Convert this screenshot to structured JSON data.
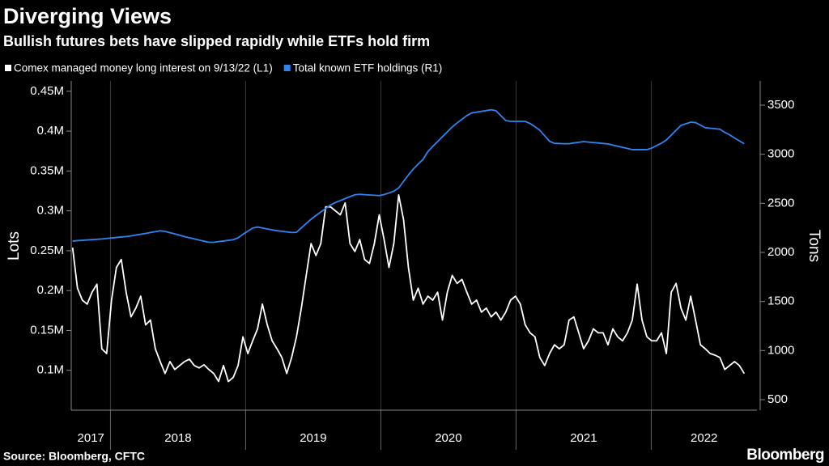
{
  "chart_data": {
    "type": "line",
    "title": "Diverging Views",
    "subtitle": "Bullish futures bets have slipped rapidly while ETFs hold firm",
    "source": "Source: Bloomberg, CFTC",
    "brand": "Bloomberg",
    "ylabel": "Lots",
    "y2label": "Tons",
    "x": [
      2017.72,
      2017.756,
      2017.792,
      2017.828,
      2017.864,
      2017.9,
      2017.936,
      2017.972,
      2018.008,
      2018.044,
      2018.08,
      2018.116,
      2018.152,
      2018.188,
      2018.224,
      2018.26,
      2018.296,
      2018.332,
      2018.368,
      2018.404,
      2018.44,
      2018.476,
      2018.512,
      2018.548,
      2018.584,
      2018.62,
      2018.656,
      2018.692,
      2018.728,
      2018.764,
      2018.8,
      2018.836,
      2018.872,
      2018.908,
      2018.944,
      2018.98,
      2019.016,
      2019.052,
      2019.088,
      2019.124,
      2019.16,
      2019.196,
      2019.232,
      2019.268,
      2019.304,
      2019.34,
      2019.376,
      2019.412,
      2019.448,
      2019.484,
      2019.52,
      2019.556,
      2019.592,
      2019.628,
      2019.664,
      2019.7,
      2019.736,
      2019.772,
      2019.808,
      2019.844,
      2019.88,
      2019.916,
      2019.952,
      2019.988,
      2020.024,
      2020.06,
      2020.096,
      2020.132,
      2020.168,
      2020.204,
      2020.24,
      2020.276,
      2020.312,
      2020.348,
      2020.384,
      2020.42,
      2020.456,
      2020.492,
      2020.528,
      2020.564,
      2020.6,
      2020.636,
      2020.672,
      2020.708,
      2020.744,
      2020.78,
      2020.816,
      2020.852,
      2020.888,
      2020.924,
      2020.96,
      2020.996,
      2021.032,
      2021.068,
      2021.104,
      2021.14,
      2021.176,
      2021.212,
      2021.248,
      2021.284,
      2021.32,
      2021.356,
      2021.392,
      2021.428,
      2021.464,
      2021.5,
      2021.536,
      2021.572,
      2021.608,
      2021.644,
      2021.68,
      2021.716,
      2021.752,
      2021.788,
      2021.824,
      2021.86,
      2021.896,
      2021.932,
      2021.968,
      2022.004,
      2022.04,
      2022.076,
      2022.112,
      2022.148,
      2022.184,
      2022.22,
      2022.256,
      2022.292,
      2022.328,
      2022.364,
      2022.4,
      2022.436,
      2022.472,
      2022.508,
      2022.544,
      2022.58,
      2022.616,
      2022.652,
      2022.688
    ],
    "series": [
      {
        "name": "Comex managed money long interest on 9/13/22 (L1)",
        "color": "#ffffff",
        "axis": "y",
        "values": [
          254000,
          203000,
          188000,
          183000,
          198000,
          208000,
          127000,
          121000,
          188000,
          229000,
          239000,
          198000,
          167000,
          178000,
          193000,
          157000,
          163000,
          127000,
          111000,
          96000,
          111000,
          101000,
          106000,
          111000,
          114000,
          106000,
          103000,
          107000,
          101000,
          96000,
          86000,
          106000,
          86000,
          91000,
          106000,
          142000,
          121000,
          137000,
          152000,
          183000,
          157000,
          137000,
          127000,
          116000,
          96000,
          116000,
          142000,
          178000,
          219000,
          259000,
          244000,
          259000,
          305000,
          305000,
          300000,
          295000,
          310000,
          259000,
          249000,
          264000,
          239000,
          234000,
          259000,
          295000,
          264000,
          229000,
          259000,
          320000,
          289000,
          229000,
          188000,
          203000,
          183000,
          193000,
          188000,
          198000,
          163000,
          198000,
          219000,
          209000,
          214000,
          198000,
          183000,
          188000,
          173000,
          178000,
          167000,
          173000,
          163000,
          173000,
          188000,
          193000,
          183000,
          157000,
          147000,
          142000,
          116000,
          106000,
          121000,
          132000,
          127000,
          132000,
          163000,
          167000,
          147000,
          127000,
          137000,
          152000,
          147000,
          147000,
          132000,
          152000,
          142000,
          137000,
          147000,
          163000,
          208000,
          163000,
          142000,
          137000,
          137000,
          147000,
          121000,
          198000,
          209000,
          178000,
          163000,
          193000,
          163000,
          132000,
          127000,
          121000,
          119000,
          116000,
          101000,
          106000,
          111000,
          106000,
          96000
        ]
      },
      {
        "name": "Total known ETF holdings (R1)",
        "color": "#2f84f2",
        "axis": "y2",
        "values": [
          2116,
          2120,
          2123,
          2127,
          2130,
          2134,
          2137,
          2142,
          2147,
          2152,
          2157,
          2162,
          2168,
          2177,
          2185,
          2194,
          2203,
          2211,
          2220,
          2214,
          2201,
          2188,
          2175,
          2161,
          2149,
          2138,
          2126,
          2114,
          2103,
          2103,
          2110,
          2116,
          2123,
          2130,
          2148,
          2185,
          2216,
          2248,
          2259,
          2249,
          2239,
          2230,
          2221,
          2215,
          2209,
          2203,
          2205,
          2250,
          2294,
          2338,
          2376,
          2412,
          2447,
          2483,
          2508,
          2528,
          2548,
          2568,
          2587,
          2592,
          2588,
          2585,
          2582,
          2579,
          2589,
          2606,
          2623,
          2657,
          2723,
          2789,
          2849,
          2899,
          2948,
          3027,
          3080,
          3129,
          3179,
          3228,
          3278,
          3319,
          3356,
          3393,
          3421,
          3429,
          3437,
          3445,
          3453,
          3443,
          3393,
          3343,
          3335,
          3335,
          3335,
          3335,
          3313,
          3280,
          3244,
          3188,
          3132,
          3111,
          3109,
          3107,
          3107,
          3115,
          3122,
          3129,
          3124,
          3119,
          3115,
          3110,
          3105,
          3093,
          3082,
          3070,
          3059,
          3047,
          3047,
          3047,
          3047,
          3063,
          3088,
          3113,
          3145,
          3195,
          3244,
          3294,
          3310,
          3327,
          3322,
          3296,
          3270,
          3265,
          3260,
          3255,
          3223,
          3198,
          3165,
          3136,
          3107
        ]
      }
    ],
    "xlim": [
      2017.71,
      2022.782
    ],
    "xticks": [
      2017,
      2018,
      2019,
      2020,
      2021,
      2022
    ],
    "ylim": [
      50000,
      463000
    ],
    "yticks": [
      {
        "value": 100000,
        "label": "0.1M"
      },
      {
        "value": 150000,
        "label": "0.15M"
      },
      {
        "value": 200000,
        "label": "0.2M"
      },
      {
        "value": 250000,
        "label": "0.25M"
      },
      {
        "value": 300000,
        "label": "0.3M"
      },
      {
        "value": 350000,
        "label": "0.35M"
      },
      {
        "value": 400000,
        "label": "0.4M"
      },
      {
        "value": 450000,
        "label": "0.45M"
      }
    ],
    "y2lim": [
      393,
      3747
    ],
    "y2ticks": [
      500,
      1000,
      1500,
      2000,
      2500,
      3000,
      3500
    ],
    "legend": "top-left"
  }
}
